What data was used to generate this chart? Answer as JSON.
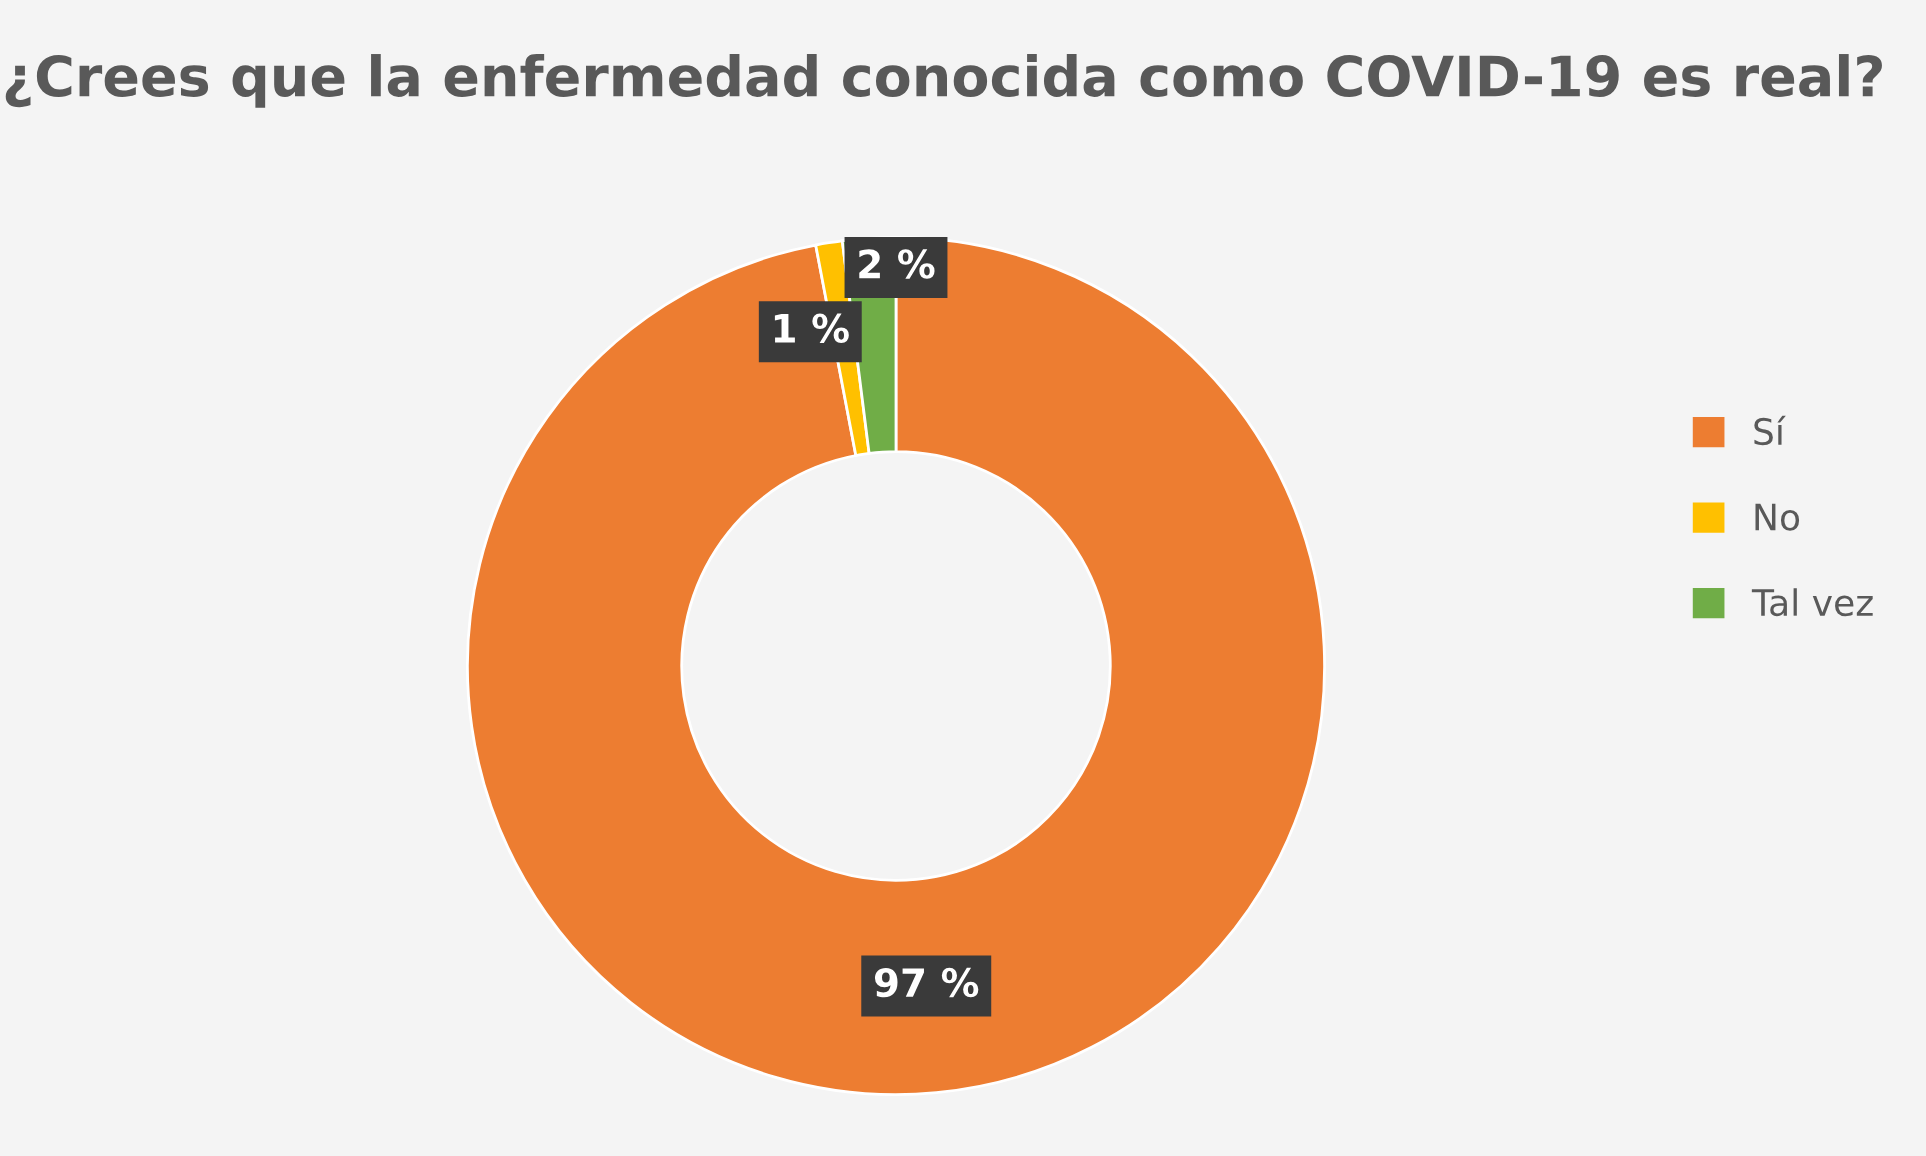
{
  "chart_data": {
    "type": "donut",
    "title": "¿Crees que la enfermedad conocida como COVID-19 es real?",
    "categories": [
      "Sí",
      "No",
      "Tal vez"
    ],
    "values": [
      97,
      1,
      2
    ],
    "colors": [
      "#ed7d31",
      "#ffc000",
      "#70ad47"
    ],
    "value_labels": [
      "97 %",
      "1 %",
      "2 %"
    ],
    "legend": "right"
  }
}
